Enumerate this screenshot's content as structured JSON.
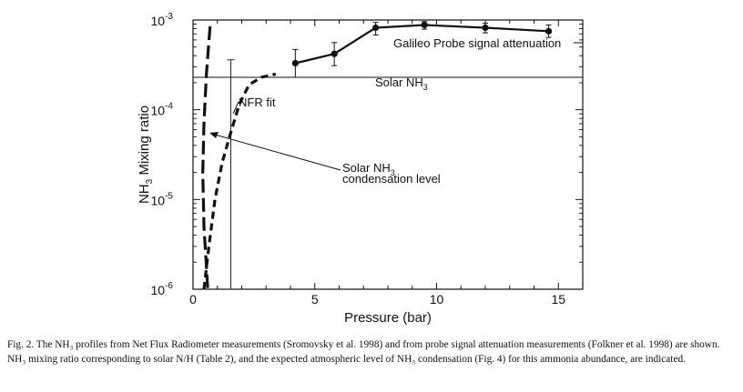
{
  "chart_data": {
    "type": "line",
    "xlabel": "Pressure (bar)",
    "ylabel": {
      "main": "NH",
      "sub": "3",
      "rest": " Mixing ratio"
    },
    "xlim": [
      0,
      16
    ],
    "ylim": [
      1e-06,
      0.001
    ],
    "y_scale": "log",
    "x_ticks": [
      0,
      5,
      10,
      15
    ],
    "y_ticks": [
      {
        "value": 1e-06,
        "base": "10",
        "exp": "-6"
      },
      {
        "value": 1e-05,
        "base": "10",
        "exp": "-5"
      },
      {
        "value": 0.0001,
        "base": "10",
        "exp": "-4"
      },
      {
        "value": 0.001,
        "base": "10",
        "exp": "-3"
      }
    ],
    "grid": false,
    "series": [
      {
        "name": "Galileo Probe signal attenuation",
        "style": "solid-markers",
        "x": [
          4.2,
          5.8,
          7.5,
          9.5,
          12.0,
          14.6
        ],
        "y": [
          0.00033,
          0.00042,
          0.00082,
          0.00088,
          0.00082,
          0.00075
        ],
        "err_low": [
          0.00023,
          0.00031,
          0.00068,
          0.00079,
          0.00072,
          0.00064
        ],
        "err_high": [
          0.00047,
          0.00056,
          0.00094,
          0.00096,
          0.00092,
          0.00088
        ]
      },
      {
        "name": "NFR fit",
        "style": "dashed",
        "x": [
          0.45,
          0.65,
          0.9,
          1.2,
          1.5,
          1.9,
          2.3,
          2.8,
          3.4
        ],
        "y": [
          1e-06,
          3e-06,
          1e-05,
          2.6e-05,
          5e-05,
          0.000115,
          0.00019,
          0.00023,
          0.00025
        ]
      },
      {
        "name": "",
        "style": "long-dashed",
        "x": [
          0.7,
          0.55,
          0.45,
          0.4,
          0.45,
          0.55,
          0.6
        ],
        "y": [
          0.00085,
          0.00025,
          7e-05,
          2e-05,
          5e-06,
          1.8e-06,
          1e-06
        ]
      }
    ],
    "reference_lines": [
      {
        "name": "Solar NH3",
        "y": 0.00023
      },
      {
        "name": "",
        "x": 1.55,
        "y_from": 1e-06,
        "y_to": 0.00036
      }
    ],
    "annotations": [
      {
        "text": "Galileo Probe signal attenuation"
      },
      {
        "text": "Solar NH",
        "sub": "3"
      },
      {
        "text": "NFR fit"
      },
      {
        "text": "Solar NH",
        "sub": "3",
        "line2": "condensation level"
      }
    ]
  },
  "caption": "Fig. 2. The NH₃ profiles from Net Flux Radiometer measurements (Sromovsky et al. 1998) and from probe signal attenuation measurements (Folkner et al. 1998) are shown. NH₃ mixing ratio corresponding to solar N/H (Table 2), and the expected atmospheric level of NH₃ condensation (Fig. 4) for this ammonia abundance, are indicated."
}
